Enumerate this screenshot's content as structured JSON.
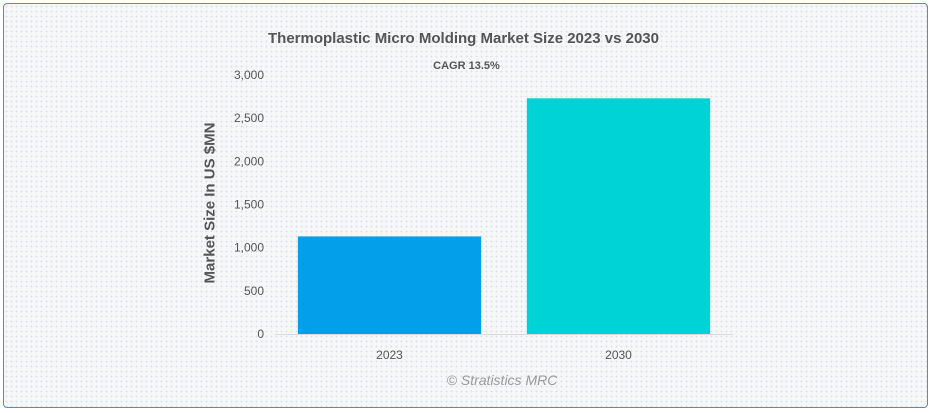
{
  "chart_data": {
    "type": "bar",
    "title": "Thermoplastic Micro Molding Market Size 2023 vs 2030",
    "subtitle": "CAGR 13.5%",
    "xlabel": "",
    "ylabel": "Market Size In US $MN",
    "categories": [
      "2023",
      "2030"
    ],
    "values": [
      1130,
      2730
    ],
    "colors": [
      "#039fea",
      "#00d3d6"
    ],
    "ylim": [
      0,
      3000
    ],
    "yticks": [
      0,
      500,
      1000,
      1500,
      2000,
      2500,
      3000
    ],
    "ytick_labels": [
      "0",
      "500",
      "1,000",
      "1,500",
      "2,000",
      "2,500",
      "3,000"
    ],
    "grid": false,
    "legend": "none"
  },
  "watermark": "© Stratistics MRC"
}
